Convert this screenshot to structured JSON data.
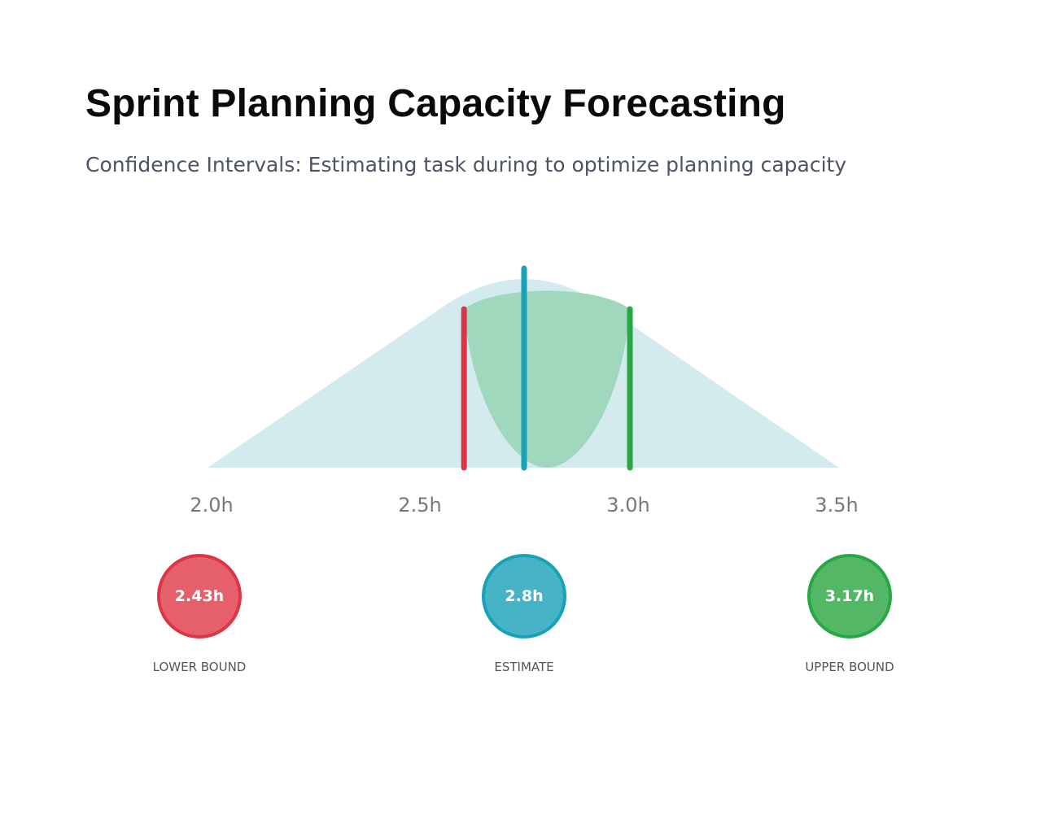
{
  "title": "Sprint Planning Capacity Forecasting",
  "subtitle": "Confidence Intervals: Estimating task during to optimize planning capacity",
  "chart_data": {
    "type": "area",
    "x_ticks": [
      "2.0h",
      "2.5h",
      "3.0h",
      "3.5h"
    ],
    "xlim": [
      2.0,
      3.5
    ],
    "range_start": 2.0,
    "range_end": 3.5,
    "peak": 2.75,
    "lower_bound": 2.43,
    "estimate": 2.8,
    "upper_bound": 3.17,
    "lower_label": "2.43h",
    "estimate_label": "2.8h",
    "upper_label": "3.17h",
    "lower_caption": "LOWER BOUND",
    "estimate_caption": "ESTIMATE",
    "upper_caption": "UPPER BOUND",
    "colors": {
      "distribution": "#d3ebef",
      "interval": "#9fd8bc",
      "lower": "#dc3545",
      "estimate": "#17a2b8",
      "upper": "#28a745",
      "lower_fill": "#e5606b",
      "estimate_fill": "#46b4c6",
      "upper_fill": "#53b766"
    }
  }
}
